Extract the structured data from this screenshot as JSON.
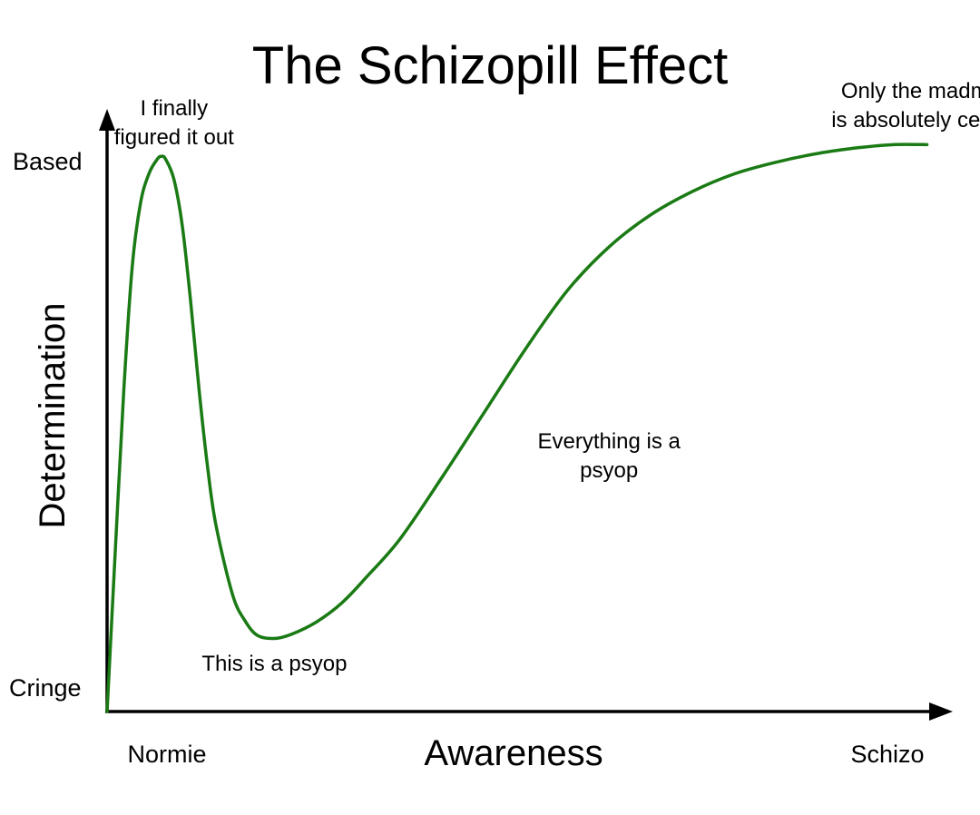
{
  "chart_data": {
    "type": "line",
    "title": "The Schizopill Effect",
    "xlabel": "Awareness",
    "ylabel": "Determination",
    "x_tick_labels": {
      "low": "Normie",
      "high": "Schizo"
    },
    "y_tick_labels": {
      "low": "Cringe",
      "high": "Based"
    },
    "xlim": [
      0,
      100
    ],
    "ylim": [
      0,
      100
    ],
    "grid": false,
    "line_color": "#1a7a14",
    "series": [
      {
        "x": [
          0,
          1,
          2,
          3,
          4,
          5,
          6,
          6.5,
          7,
          8,
          9,
          10,
          11,
          12,
          13,
          15,
          16.5,
          18,
          20,
          22,
          25,
          28,
          31,
          35,
          40,
          45,
          50,
          55,
          60,
          65,
          70,
          75,
          80,
          85,
          90,
          94,
          98
        ],
        "y": [
          0,
          28,
          55,
          76,
          87,
          92,
          94.5,
          95,
          94.5,
          91,
          83,
          70,
          55,
          42,
          32,
          20,
          15.5,
          13,
          12.5,
          13.2,
          15.3,
          18.5,
          23,
          29.5,
          40,
          51,
          62,
          72,
          79.5,
          85,
          89,
          92,
          94,
          95.5,
          96.5,
          97,
          97
        ]
      }
    ],
    "annotations": [
      {
        "x": 8,
        "y": 102,
        "lines": [
          "I finally",
          "figured it out"
        ]
      },
      {
        "x": 20,
        "y": 7,
        "lines": [
          "This is a psyop"
        ]
      },
      {
        "x": 60,
        "y": 45,
        "lines": [
          "Everything is a",
          "psyop"
        ]
      },
      {
        "x": 98,
        "y": 105,
        "lines": [
          "Only the madman",
          "is absolutely certain"
        ]
      }
    ]
  }
}
